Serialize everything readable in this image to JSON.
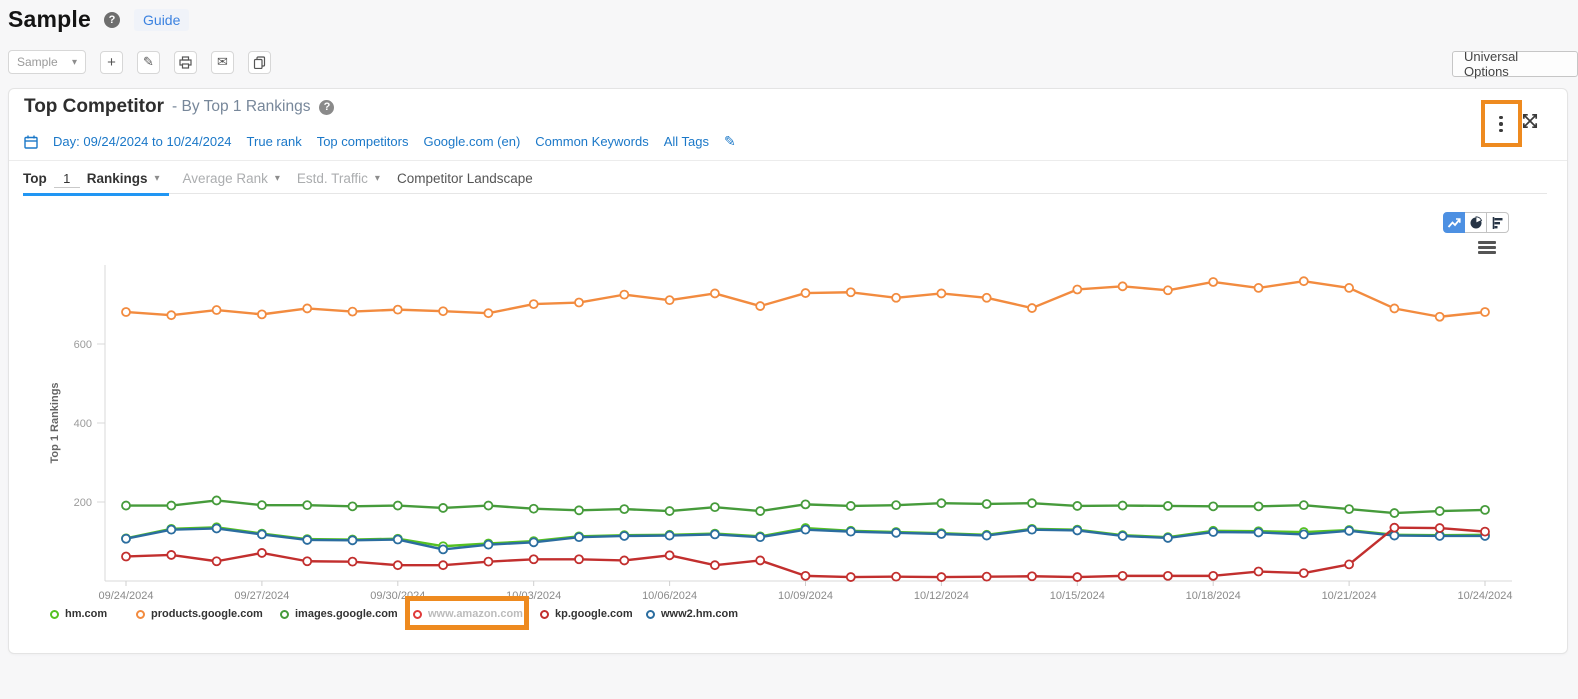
{
  "page": {
    "title": "Sample",
    "guide_label": "Guide"
  },
  "toolbar": {
    "report_name": "Sample",
    "universal_options_label": "Universal Options",
    "icons": [
      "plus-icon",
      "pencil-icon",
      "printer-icon",
      "envelope-icon",
      "copy-icon"
    ]
  },
  "widget": {
    "title": "Top Competitor",
    "subtitle": "- By Top 1 Rankings",
    "filters": {
      "date_range": "Day: 09/24/2024 to 10/24/2024",
      "links": [
        "True rank",
        "Top competitors",
        "Google.com (en)",
        "Common Keywords",
        "All Tags"
      ]
    },
    "tabs": {
      "active": {
        "prefix": "Top",
        "value": "1",
        "suffix": "Rankings"
      },
      "average_rank": "Average Rank",
      "estd_traffic": "Estd. Traffic",
      "competitor_landscape": "Competitor Landscape"
    }
  },
  "icons": {
    "kebab": "⋮",
    "caret": "▾",
    "plus": "+",
    "pencil": "✎",
    "envelope": "✉"
  },
  "annotation_color": "#ee8a1f",
  "chart_data": {
    "type": "line",
    "x": [
      "09/24/2024",
      "09/25/2024",
      "09/26/2024",
      "09/27/2024",
      "09/28/2024",
      "09/29/2024",
      "09/30/2024",
      "10/01/2024",
      "10/02/2024",
      "10/03/2024",
      "10/04/2024",
      "10/05/2024",
      "10/06/2024",
      "10/07/2024",
      "10/08/2024",
      "10/09/2024",
      "10/10/2024",
      "10/11/2024",
      "10/12/2024",
      "10/13/2024",
      "10/14/2024",
      "10/15/2024",
      "10/16/2024",
      "10/17/2024",
      "10/18/2024",
      "10/19/2024",
      "10/20/2024",
      "10/21/2024",
      "10/22/2024",
      "10/23/2024",
      "10/24/2024"
    ],
    "x_tick_every": 3,
    "yaxis": {
      "title": "Top 1 Rankings",
      "ticks": [
        200,
        400,
        600
      ],
      "range": [
        0,
        800
      ]
    },
    "grid": false,
    "legend_position": "bottom",
    "series": [
      {
        "name": "hm.com",
        "color": "#55c122",
        "visible": true,
        "values": [
          108,
          132,
          136,
          120,
          106,
          105,
          107,
          88,
          95,
          101,
          113,
          116,
          117,
          120,
          113,
          134,
          127,
          124,
          121,
          117,
          132,
          130,
          116,
          111,
          127,
          126,
          124,
          129,
          117,
          116,
          117
        ]
      },
      {
        "name": "products.google.com",
        "color": "#f28b3f",
        "visible": true,
        "values": [
          681,
          673,
          686,
          675,
          690,
          682,
          687,
          683,
          678,
          701,
          705,
          725,
          711,
          728,
          696,
          729,
          731,
          717,
          728,
          717,
          691,
          738,
          746,
          736,
          757,
          742,
          759,
          742,
          690,
          669,
          681
        ]
      },
      {
        "name": "images.google.com",
        "color": "#469b3b",
        "visible": true,
        "values": [
          191,
          191,
          204,
          192,
          192,
          189,
          191,
          185,
          191,
          183,
          179,
          182,
          177,
          187,
          177,
          194,
          190,
          192,
          197,
          195,
          197,
          190,
          191,
          190,
          189,
          189,
          192,
          182,
          172,
          177,
          180
        ]
      },
      {
        "name": "www.amazon.com",
        "color": "#e03a3a",
        "visible": false,
        "values": []
      },
      {
        "name": "kp.google.com",
        "color": "#c22f2e",
        "visible": true,
        "values": [
          62,
          66,
          50,
          71,
          50,
          49,
          40,
          40,
          49,
          55,
          55,
          52,
          65,
          40,
          52,
          13,
          10,
          11,
          10,
          11,
          12,
          10,
          13,
          13,
          13,
          24,
          20,
          42,
          135,
          134,
          125
        ]
      },
      {
        "name": "www2.hm.com",
        "color": "#2b6d9f",
        "visible": true,
        "values": [
          107,
          130,
          133,
          118,
          104,
          103,
          105,
          80,
          92,
          98,
          111,
          114,
          115,
          118,
          111,
          130,
          125,
          122,
          119,
          115,
          130,
          128,
          114,
          109,
          124,
          123,
          118,
          127,
          115,
          114,
          114
        ]
      }
    ]
  }
}
